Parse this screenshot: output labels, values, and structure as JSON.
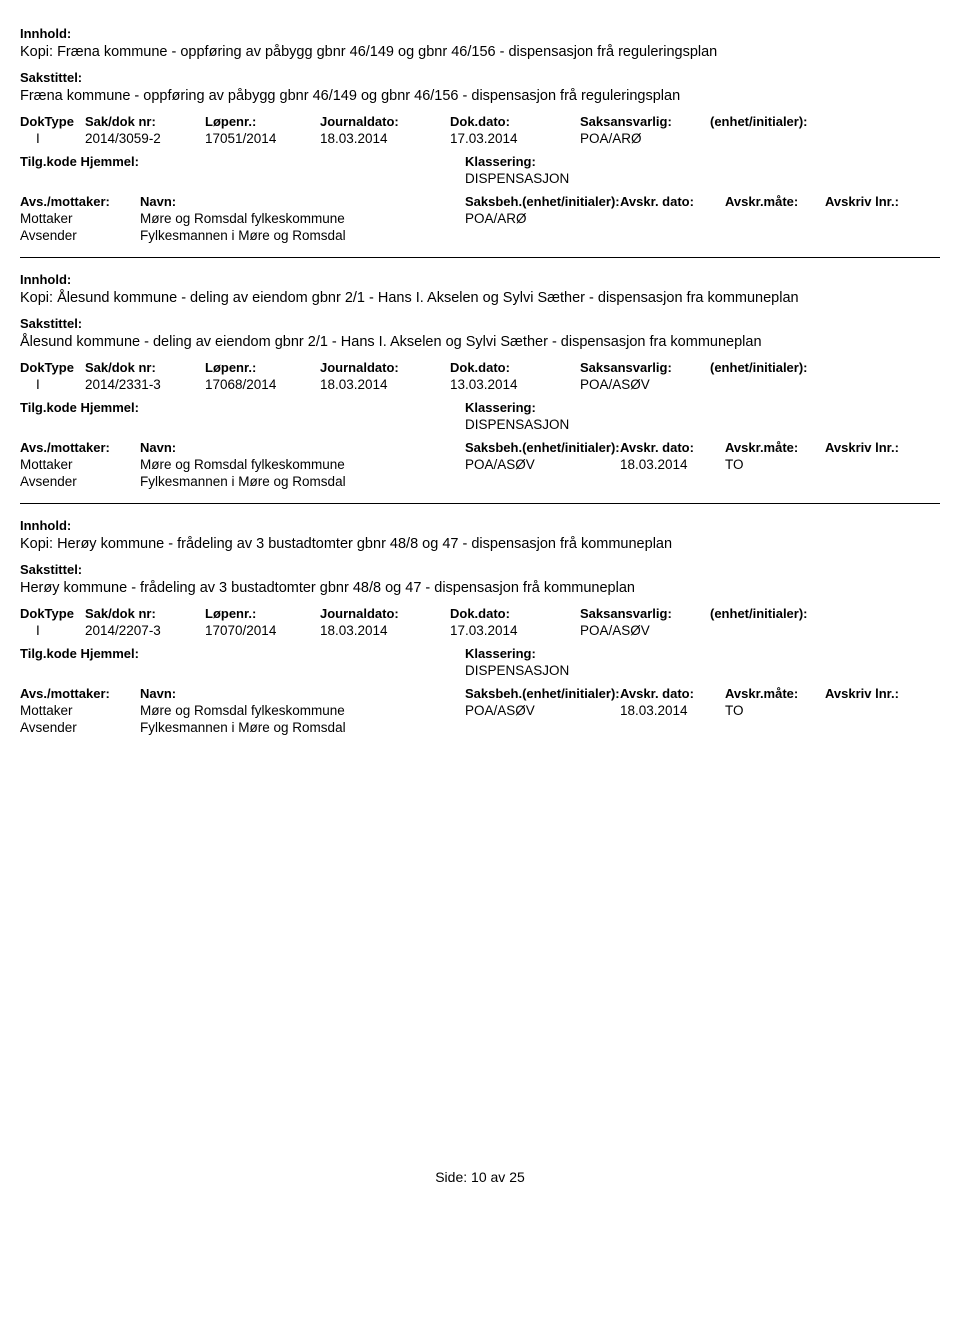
{
  "labels": {
    "innhold": "Innhold:",
    "sakstittel": "Sakstittel:",
    "doktype": "DokType",
    "sakdok": "Sak/dok nr:",
    "lopenr": "Løpenr.:",
    "journaldato": "Journaldato:",
    "dokdato": "Dok.dato:",
    "saksansvarlig": "Saksansvarlig:",
    "enhet": "(enhet/initialer):",
    "tilgkode": "Tilg.kode",
    "hjemmel": "Hjemmel:",
    "klassering": "Klassering:",
    "avsmottaker": "Avs./mottaker:",
    "navn": "Navn:",
    "saksbeh": "Saksbeh.",
    "saksbeh_enhet": "(enhet/initialer):",
    "avskr_dato": "Avskr. dato:",
    "avskr_mate": "Avskr.måte:",
    "avskriv_lnr": "Avskriv lnr.:",
    "mottaker": "Mottaker",
    "avsender": "Avsender",
    "side": "Side:",
    "av": "av"
  },
  "records": [
    {
      "innhold": "Kopi: Fræna kommune - oppføring av påbygg gbnr 46/149 og gbnr 46/156 - dispensasjon frå reguleringsplan",
      "sakstittel": "Fræna kommune - oppføring av påbygg gbnr 46/149 og gbnr 46/156 - dispensasjon frå reguleringsplan",
      "doktype": "I",
      "sakdok": "2014/3059-2",
      "lopenr": "17051/2014",
      "journaldato": "18.03.2014",
      "dokdato": "17.03.2014",
      "saksansvarlig": "POA/ARØ",
      "klassering": "DISPENSASJON",
      "parties": [
        {
          "role": "Mottaker",
          "navn": "Møre og Romsdal fylkeskommune",
          "saksbeh": "POA/ARØ",
          "avskrdato": "",
          "avskrmate": ""
        },
        {
          "role": "Avsender",
          "navn": "Fylkesmannen i Møre og Romsdal",
          "saksbeh": "",
          "avskrdato": "",
          "avskrmate": ""
        }
      ]
    },
    {
      "innhold": "Kopi: Ålesund kommune - deling av eiendom gbnr 2/1 - Hans I. Akselen og Sylvi Sæther - dispensasjon fra kommuneplan",
      "sakstittel": "Ålesund kommune - deling av eiendom gbnr 2/1 - Hans I. Akselen og Sylvi Sæther - dispensasjon fra kommuneplan",
      "doktype": "I",
      "sakdok": "2014/2331-3",
      "lopenr": "17068/2014",
      "journaldato": "18.03.2014",
      "dokdato": "13.03.2014",
      "saksansvarlig": "POA/ASØV",
      "klassering": "DISPENSASJON",
      "parties": [
        {
          "role": "Mottaker",
          "navn": "Møre og Romsdal fylkeskommune",
          "saksbeh": "POA/ASØV",
          "avskrdato": "18.03.2014",
          "avskrmate": "TO"
        },
        {
          "role": "Avsender",
          "navn": "Fylkesmannen i Møre og Romsdal",
          "saksbeh": "",
          "avskrdato": "",
          "avskrmate": ""
        }
      ]
    },
    {
      "innhold": "Kopi: Herøy kommune - frådeling av 3 bustadtomter gbnr 48/8 og 47 - dispensasjon frå kommuneplan",
      "sakstittel": "Herøy kommune - frådeling av 3 bustadtomter gbnr 48/8 og 47 - dispensasjon frå kommuneplan",
      "doktype": "I",
      "sakdok": "2014/2207-3",
      "lopenr": "17070/2014",
      "journaldato": "18.03.2014",
      "dokdato": "17.03.2014",
      "saksansvarlig": "POA/ASØV",
      "klassering": "DISPENSASJON",
      "parties": [
        {
          "role": "Mottaker",
          "navn": "Møre og Romsdal fylkeskommune",
          "saksbeh": "POA/ASØV",
          "avskrdato": "18.03.2014",
          "avskrmate": "TO"
        },
        {
          "role": "Avsender",
          "navn": "Fylkesmannen i Møre og Romsdal",
          "saksbeh": "",
          "avskrdato": "",
          "avskrmate": ""
        }
      ]
    }
  ],
  "page": {
    "current": "10",
    "total": "25"
  }
}
